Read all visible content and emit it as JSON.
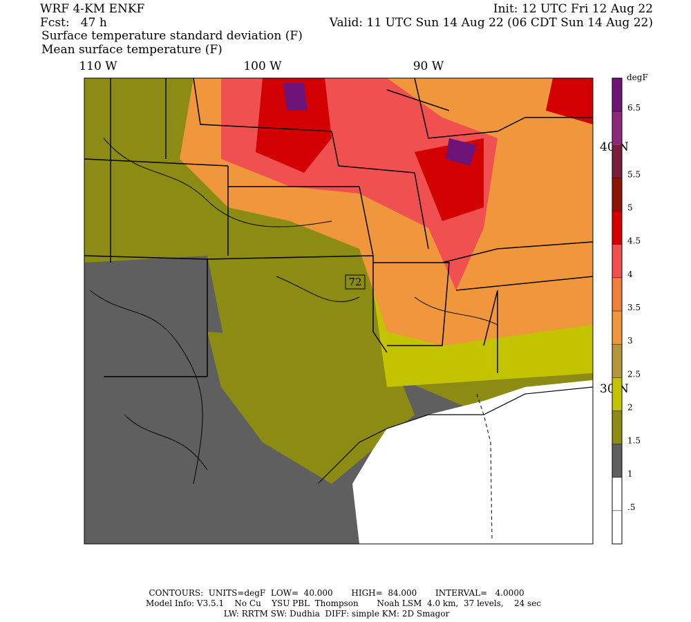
{
  "header": {
    "model": "WRF 4-KM ENKF",
    "init": "Init: 12 UTC Fri 12 Aug 22",
    "fcst": "Fcst:   47 h",
    "valid": "Valid: 11 UTC Sun 14 Aug 22 (06 CDT Sun 14 Aug 22)",
    "field1": "Surface temperature standard deviation (F)",
    "field2": "Mean surface temperature (F)"
  },
  "map": {
    "lon_labels": [
      "110 W",
      "100 W",
      "90 W"
    ],
    "lat_labels": [
      "40 N",
      "30 N"
    ],
    "contour_label": "72"
  },
  "colorbar": {
    "unit": "degF",
    "labels": [
      {
        "value": 0.5,
        "label": ".5"
      },
      1,
      1.5,
      2,
      2.5,
      3,
      3.5,
      4,
      4.5,
      5,
      5.5,
      6.5
    ],
    "colors": [
      "#ffffff",
      "#ffffff",
      "#5f5f5f",
      "#8c8c14",
      "#c3c300",
      "#b4963c",
      "#f0963c",
      "#f07f3c",
      "#f05050",
      "#d20000",
      "#8c1400",
      "#781e3c",
      "#8c2878",
      "#6e1478"
    ]
  },
  "footer": {
    "line1": "CONTOURS:  UNITS=degF  LOW=  40.000       HIGH=  84.000       INTERVAL=   4.0000",
    "line2": "Model Info: V3.5.1    No Cu    YSU PBL  Thompson       Noah LSM  4.0 km,  37 levels,    24 sec",
    "line3": "LW: RRTM SW: Dudhia  DIFF: simple KM: 2D Smagor"
  }
}
